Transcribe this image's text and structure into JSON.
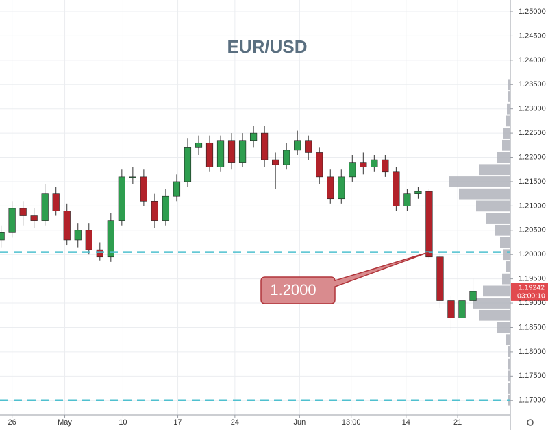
{
  "chart_data": {
    "type": "candlestick",
    "title": "EUR/USD",
    "x": [
      -1,
      0,
      1,
      2,
      3,
      4,
      5,
      6,
      7,
      8,
      9,
      10,
      11,
      12,
      13,
      14,
      15,
      16,
      17,
      18,
      19,
      20,
      21,
      22,
      23,
      24,
      25,
      26,
      27,
      28,
      29,
      30,
      31,
      32,
      33,
      34,
      35,
      36,
      37,
      38,
      39,
      40,
      41,
      42
    ],
    "open": [
      1.203,
      1.2045,
      1.2095,
      1.208,
      1.207,
      1.2125,
      1.209,
      1.203,
      1.205,
      1.201,
      1.1995,
      1.207,
      1.216,
      1.216,
      1.211,
      1.207,
      1.212,
      1.215,
      1.222,
      1.223,
      1.218,
      1.2235,
      1.219,
      1.2235,
      1.225,
      1.2195,
      1.2185,
      1.2215,
      1.2235,
      1.221,
      1.216,
      1.2115,
      1.216,
      1.219,
      1.218,
      1.2195,
      1.217,
      1.21,
      1.2125,
      1.213,
      1.1995,
      1.1905,
      1.187,
      1.1905
    ],
    "high": [
      1.206,
      1.211,
      1.211,
      1.2095,
      1.2145,
      1.214,
      1.2105,
      1.2065,
      1.2065,
      1.2025,
      1.2085,
      1.2175,
      1.218,
      1.2175,
      1.2125,
      1.2135,
      1.2165,
      1.224,
      1.2245,
      1.2245,
      1.2245,
      1.225,
      1.225,
      1.2265,
      1.2265,
      1.221,
      1.223,
      1.2255,
      1.2245,
      1.222,
      1.2175,
      1.2175,
      1.2205,
      1.221,
      1.2205,
      1.2205,
      1.218,
      1.2135,
      1.214,
      1.2135,
      1.2005,
      1.1915,
      1.1915,
      1.195
    ],
    "low": [
      1.2015,
      1.2035,
      1.206,
      1.2055,
      1.206,
      1.208,
      1.202,
      1.2015,
      1.2,
      1.1988,
      1.1985,
      1.206,
      1.2145,
      1.21,
      1.2055,
      1.206,
      1.211,
      1.214,
      1.2205,
      1.217,
      1.217,
      1.2175,
      1.218,
      1.222,
      1.218,
      1.2135,
      1.2175,
      1.2205,
      1.2195,
      1.2145,
      1.2105,
      1.2105,
      1.215,
      1.2165,
      1.217,
      1.216,
      1.209,
      1.209,
      1.2115,
      1.199,
      1.189,
      1.1845,
      1.186,
      1.189
    ],
    "close": [
      1.2045,
      1.2095,
      1.208,
      1.207,
      1.2125,
      1.209,
      1.203,
      1.205,
      1.201,
      1.1995,
      1.207,
      1.216,
      1.216,
      1.211,
      1.207,
      1.212,
      1.215,
      1.222,
      1.223,
      1.218,
      1.2235,
      1.219,
      1.2235,
      1.225,
      1.2195,
      1.2185,
      1.2215,
      1.2235,
      1.221,
      1.216,
      1.2115,
      1.216,
      1.219,
      1.218,
      1.2195,
      1.217,
      1.21,
      1.2125,
      1.213,
      1.1995,
      1.1905,
      1.187,
      1.1905,
      1.1924
    ],
    "up_color": "#2e9e4f",
    "down_color": "#b2222a",
    "xlim": [
      -1.1,
      45.4
    ],
    "ylim": [
      1.167,
      1.2524
    ],
    "xticks": [
      {
        "value": 0,
        "label": "26"
      },
      {
        "value": 4.8,
        "label": "May"
      },
      {
        "value": 10.1,
        "label": "10"
      },
      {
        "value": 15.1,
        "label": "17"
      },
      {
        "value": 20.3,
        "label": "24"
      },
      {
        "value": 26.2,
        "label": "Jun"
      },
      {
        "value": 30.9,
        "label": "13:00"
      },
      {
        "value": 35.9,
        "label": "14"
      },
      {
        "value": 40.6,
        "label": "21"
      }
    ],
    "yticks": [
      {
        "value": 1.17,
        "label": "1.17000"
      },
      {
        "value": 1.175,
        "label": "1.17500"
      },
      {
        "value": 1.18,
        "label": "1.18000"
      },
      {
        "value": 1.185,
        "label": "1.18500"
      },
      {
        "value": 1.19,
        "label": "1.19000"
      },
      {
        "value": 1.195,
        "label": "1.19500"
      },
      {
        "value": 1.2,
        "label": "1.20000"
      },
      {
        "value": 1.205,
        "label": "1.20500"
      },
      {
        "value": 1.21,
        "label": "1.21000"
      },
      {
        "value": 1.215,
        "label": "1.21500"
      },
      {
        "value": 1.22,
        "label": "1.22000"
      },
      {
        "value": 1.225,
        "label": "1.22500"
      },
      {
        "value": 1.23,
        "label": "1.23000"
      },
      {
        "value": 1.235,
        "label": "1.23500"
      },
      {
        "value": 1.24,
        "label": "1.24000"
      },
      {
        "value": 1.245,
        "label": "1.24500"
      },
      {
        "value": 1.25,
        "label": "1.25000"
      }
    ],
    "grid": true,
    "horizontal_lines": [
      1.2005,
      1.17
    ],
    "line_color": "#4fc0cf",
    "annotation": "1.2000",
    "last_price": {
      "value": 1.19242,
      "label": "1.19242"
    },
    "countdown": "03:00:10",
    "volume_profile": {
      "color": "#b0b3bb",
      "prices": [
        1.17,
        1.1725,
        1.175,
        1.1775,
        1.18,
        1.1825,
        1.185,
        1.1875,
        1.19,
        1.1925,
        1.195,
        1.1975,
        1.2,
        1.2025,
        1.205,
        1.2075,
        1.21,
        1.2125,
        1.215,
        1.2175,
        1.22,
        1.2225,
        1.225,
        1.2275,
        1.23,
        1.2325,
        1.235
      ],
      "volumes": [
        3,
        3,
        3,
        3,
        4,
        6,
        20,
        45,
        55,
        40,
        12,
        6,
        10,
        15,
        22,
        35,
        50,
        75,
        90,
        45,
        20,
        12,
        10,
        6,
        5,
        4,
        3
      ]
    }
  }
}
